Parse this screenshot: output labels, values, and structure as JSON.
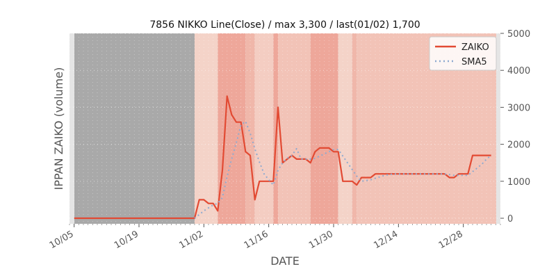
{
  "chart_data": {
    "type": "line",
    "title": "7856 NIKKO Line(Close) / max 3,300 / last(01/02) 1,700",
    "xlabel": "DATE",
    "ylabel": "IPPAN ZAIKO (volume)",
    "x_start_date": "2023-10-04",
    "x_end_date": "2024-01-05",
    "x_tick_labels": [
      "10/05",
      "10/19",
      "11/02",
      "11/16",
      "11/30",
      "12/14",
      "12/28"
    ],
    "y_ticks": [
      0,
      1000,
      2000,
      3000,
      4000,
      5000
    ],
    "ylim": [
      -150,
      5000
    ],
    "y_axis_side": "right",
    "grid": true,
    "legend_position": "top-right",
    "series": [
      {
        "name": "ZAIKO",
        "color": "#e24a33",
        "style": "solid",
        "points": [
          [
            "10/05",
            0
          ],
          [
            "10/06",
            0
          ],
          [
            "10/09",
            0
          ],
          [
            "10/10",
            0
          ],
          [
            "10/11",
            0
          ],
          [
            "10/12",
            0
          ],
          [
            "10/13",
            0
          ],
          [
            "10/16",
            0
          ],
          [
            "10/17",
            0
          ],
          [
            "10/18",
            0
          ],
          [
            "10/19",
            0
          ],
          [
            "10/20",
            0
          ],
          [
            "10/23",
            0
          ],
          [
            "10/24",
            0
          ],
          [
            "10/25",
            0
          ],
          [
            "10/26",
            0
          ],
          [
            "10/27",
            0
          ],
          [
            "10/30",
            0
          ],
          [
            "10/31",
            0
          ],
          [
            "11/01",
            500
          ],
          [
            "11/02",
            500
          ],
          [
            "11/03",
            400
          ],
          [
            "11/04",
            400
          ],
          [
            "11/05",
            200
          ],
          [
            "11/06",
            1300
          ],
          [
            "11/07",
            3300
          ],
          [
            "11/08",
            2800
          ],
          [
            "11/09",
            2600
          ],
          [
            "11/10",
            2600
          ],
          [
            "11/11",
            1800
          ],
          [
            "11/12",
            1700
          ],
          [
            "11/13",
            500
          ],
          [
            "11/14",
            1000
          ],
          [
            "11/15",
            1000
          ],
          [
            "11/16",
            1000
          ],
          [
            "11/17",
            1000
          ],
          [
            "11/18",
            3000
          ],
          [
            "11/19",
            1500
          ],
          [
            "11/20",
            1600
          ],
          [
            "11/21",
            1700
          ],
          [
            "11/22",
            1600
          ],
          [
            "11/23",
            1600
          ],
          [
            "11/24",
            1600
          ],
          [
            "11/25",
            1500
          ],
          [
            "11/26",
            1800
          ],
          [
            "11/27",
            1900
          ],
          [
            "11/28",
            1900
          ],
          [
            "11/29",
            1900
          ],
          [
            "11/30",
            1800
          ],
          [
            "12/01",
            1800
          ],
          [
            "12/02",
            1000
          ],
          [
            "12/03",
            1000
          ],
          [
            "12/04",
            1000
          ],
          [
            "12/05",
            900
          ],
          [
            "12/06",
            1100
          ],
          [
            "12/07",
            1100
          ],
          [
            "12/08",
            1100
          ],
          [
            "12/09",
            1200
          ],
          [
            "12/10",
            1200
          ],
          [
            "12/11",
            1200
          ],
          [
            "12/12",
            1200
          ],
          [
            "12/13",
            1200
          ],
          [
            "12/14",
            1200
          ],
          [
            "12/15",
            1200
          ],
          [
            "12/16",
            1200
          ],
          [
            "12/17",
            1200
          ],
          [
            "12/18",
            1200
          ],
          [
            "12/19",
            1200
          ],
          [
            "12/20",
            1200
          ],
          [
            "12/21",
            1200
          ],
          [
            "12/22",
            1200
          ],
          [
            "12/23",
            1200
          ],
          [
            "12/24",
            1200
          ],
          [
            "12/25",
            1100
          ],
          [
            "12/26",
            1100
          ],
          [
            "12/27",
            1200
          ],
          [
            "12/28",
            1200
          ],
          [
            "12/29",
            1200
          ],
          [
            "12/30",
            1700
          ],
          [
            "12/31",
            1700
          ],
          [
            "01/01",
            1700
          ],
          [
            "01/02",
            1700
          ],
          [
            "01/03",
            1700
          ]
        ]
      },
      {
        "name": "SMA5",
        "color": "#8eaad0",
        "style": "dotted",
        "points": [
          [
            "10/31",
            0
          ],
          [
            "11/01",
            100
          ],
          [
            "11/02",
            200
          ],
          [
            "11/03",
            280
          ],
          [
            "11/04",
            360
          ],
          [
            "11/05",
            400
          ],
          [
            "11/06",
            560
          ],
          [
            "11/07",
            1120
          ],
          [
            "11/08",
            1600
          ],
          [
            "11/09",
            2040
          ],
          [
            "11/10",
            2520
          ],
          [
            "11/11",
            2620
          ],
          [
            "11/12",
            2300
          ],
          [
            "11/13",
            1880
          ],
          [
            "11/14",
            1520
          ],
          [
            "11/15",
            1200
          ],
          [
            "11/16",
            1040
          ],
          [
            "11/17",
            900
          ],
          [
            "11/18",
            1300
          ],
          [
            "11/19",
            1500
          ],
          [
            "11/20",
            1620
          ],
          [
            "11/21",
            1700
          ],
          [
            "11/22",
            1880
          ],
          [
            "11/23",
            1600
          ],
          [
            "11/24",
            1600
          ],
          [
            "11/25",
            1600
          ],
          [
            "11/26",
            1620
          ],
          [
            "11/27",
            1680
          ],
          [
            "11/28",
            1740
          ],
          [
            "11/29",
            1800
          ],
          [
            "11/30",
            1860
          ],
          [
            "12/01",
            1860
          ],
          [
            "12/02",
            1680
          ],
          [
            "12/03",
            1500
          ],
          [
            "12/04",
            1320
          ],
          [
            "12/05",
            1140
          ],
          [
            "12/06",
            1000
          ],
          [
            "12/07",
            1020
          ],
          [
            "12/08",
            1040
          ],
          [
            "12/09",
            1080
          ],
          [
            "12/10",
            1120
          ],
          [
            "12/11",
            1160
          ],
          [
            "12/12",
            1180
          ],
          [
            "12/13",
            1200
          ],
          [
            "12/14",
            1200
          ],
          [
            "12/15",
            1200
          ],
          [
            "12/16",
            1200
          ],
          [
            "12/17",
            1200
          ],
          [
            "12/18",
            1200
          ],
          [
            "12/19",
            1200
          ],
          [
            "12/20",
            1200
          ],
          [
            "12/21",
            1200
          ],
          [
            "12/22",
            1200
          ],
          [
            "12/23",
            1200
          ],
          [
            "12/24",
            1200
          ],
          [
            "12/25",
            1180
          ],
          [
            "12/26",
            1160
          ],
          [
            "12/27",
            1160
          ],
          [
            "12/28",
            1160
          ],
          [
            "12/29",
            1160
          ],
          [
            "12/30",
            1260
          ],
          [
            "12/31",
            1360
          ],
          [
            "01/01",
            1460
          ],
          [
            "01/02",
            1600
          ],
          [
            "01/03",
            1700
          ]
        ]
      }
    ],
    "background_bands": [
      {
        "from": "10/04",
        "to": "10/31",
        "color": "#a9a9a9"
      },
      {
        "from": "10/31",
        "to": "11/05",
        "color": "#f4d3c8"
      },
      {
        "from": "11/05",
        "to": "11/11",
        "color": "#eea79a"
      },
      {
        "from": "11/11",
        "to": "11/13",
        "color": "#f0b7aa"
      },
      {
        "from": "11/13",
        "to": "11/17",
        "color": "#f4cdc2"
      },
      {
        "from": "11/17",
        "to": "11/18",
        "color": "#eea79a"
      },
      {
        "from": "11/18",
        "to": "11/25",
        "color": "#f2c3b7"
      },
      {
        "from": "11/25",
        "to": "12/01",
        "color": "#eea79a"
      },
      {
        "from": "12/01",
        "to": "12/04",
        "color": "#f4d3c8"
      },
      {
        "from": "12/04",
        "to": "12/05",
        "color": "#f0b7aa"
      },
      {
        "from": "12/05",
        "to": "01/05",
        "color": "#f2c3b7"
      }
    ]
  }
}
